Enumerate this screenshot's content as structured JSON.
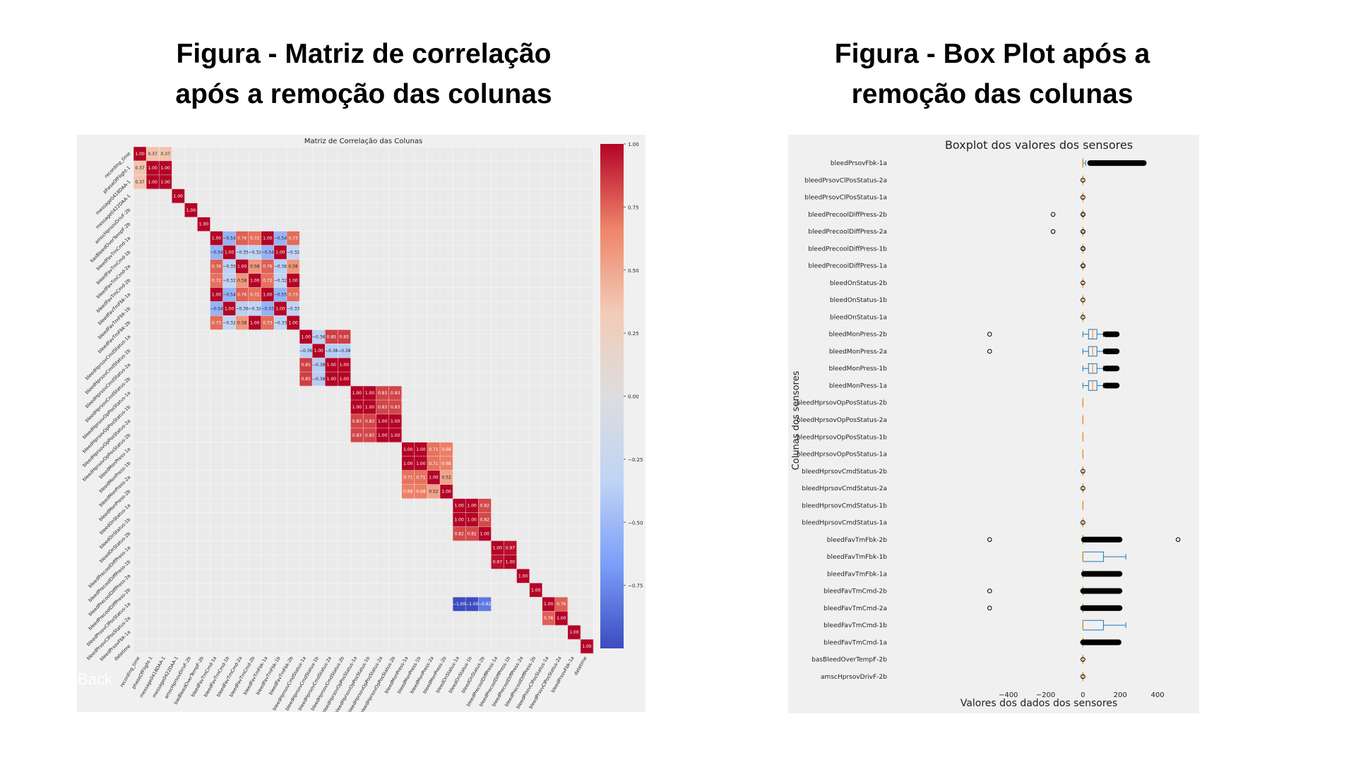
{
  "slide": {
    "left_title": "Figura - Matriz de correlação\napós a remoção das colunas",
    "right_title": "Figura - Box Plot após a\nremoção das colunas",
    "back_label": "Back"
  },
  "colors": {
    "panel_bg": "#f0f0f0",
    "cmap": [
      "#3b4cc0",
      "#7b9ff9",
      "#c0d4f5",
      "#dddddd",
      "#f2cbb7",
      "#ee8468",
      "#b40426"
    ],
    "box_color": "#1f77b4",
    "median_color": "#ff7f0e"
  },
  "chart_data": [
    {
      "type": "heatmap",
      "title": "Matriz de Correlação das Colunas",
      "labels": [
        "recording_time",
        "phaseOfFlight-1",
        "message0418DAA-1",
        "message0422DAA-1",
        "amscHprsovDrivF-2b",
        "basBleedOverTempF-2b",
        "bleedFavTmCmd-1a",
        "bleedFavTmCmd-1b",
        "bleedFavTmCmd-2a",
        "bleedFavTmCmd-2b",
        "bleedFavTmFbk-1a",
        "bleedFavTmFbk-1b",
        "bleedFavTmFbk-2b",
        "bleedHprsovCmdStatus-1a",
        "bleedHprsovCmdStatus-1b",
        "bleedHprsovCmdStatus-2a",
        "bleedHprsovCmdStatus-2b",
        "bleedHprsovOpPosStatus-1a",
        "bleedHprsovOpPosStatus-1b",
        "bleedHprsovOpPosStatus-2a",
        "bleedHprsovOpPosStatus-2b",
        "bleedMonPress-1a",
        "bleedMonPress-1b",
        "bleedMonPress-2a",
        "bleedMonPress-2b",
        "bleedOnStatus-1a",
        "bleedOnStatus-1b",
        "bleedOnStatus-2b",
        "bleedPrecoolDiffPress-1a",
        "bleedPrecoolDiffPress-1b",
        "bleedPrecoolDiffPress-2a",
        "bleedPrecoolDiffPress-2b",
        "bleedPrsovClPosStatus-1a",
        "bleedPrsovClPosStatus-2a",
        "bleedPrsovFbk-1a",
        "datetime"
      ],
      "colorbar_ticks": [
        1.0,
        0.75,
        0.5,
        0.25,
        0.0,
        -0.25,
        -0.5,
        -0.75
      ],
      "colorbar_tick_labels": [
        "1.00",
        "0.75",
        "0.50",
        "0.25",
        "0.00",
        "−0.25",
        "−0.50",
        "−0.75"
      ],
      "vmin": -1.0,
      "vmax": 1.0,
      "cells": [
        [
          0,
          0,
          1.0
        ],
        [
          0,
          1,
          0.37
        ],
        [
          0,
          2,
          0.37
        ],
        [
          1,
          0,
          0.37
        ],
        [
          1,
          1,
          1.0
        ],
        [
          1,
          2,
          1.0
        ],
        [
          2,
          0,
          0.37
        ],
        [
          2,
          1,
          1.0
        ],
        [
          2,
          2,
          1.0
        ],
        [
          3,
          3,
          1.0
        ],
        [
          4,
          4,
          1.0
        ],
        [
          5,
          5,
          1.0
        ],
        [
          6,
          6,
          1.0
        ],
        [
          6,
          7,
          -0.54
        ],
        [
          6,
          8,
          0.76
        ],
        [
          6,
          9,
          0.72
        ],
        [
          6,
          10,
          1.0
        ],
        [
          6,
          11,
          -0.54
        ],
        [
          6,
          12,
          0.73
        ],
        [
          7,
          6,
          -0.54
        ],
        [
          7,
          7,
          1.0
        ],
        [
          7,
          8,
          -0.35
        ],
        [
          7,
          9,
          -0.32
        ],
        [
          7,
          10,
          -0.54
        ],
        [
          7,
          11,
          1.0
        ],
        [
          7,
          12,
          -0.32
        ],
        [
          8,
          6,
          0.76
        ],
        [
          8,
          7,
          -0.35
        ],
        [
          8,
          8,
          1.0
        ],
        [
          8,
          9,
          0.58
        ],
        [
          8,
          10,
          0.76
        ],
        [
          8,
          11,
          -0.36
        ],
        [
          8,
          12,
          0.58
        ],
        [
          9,
          6,
          0.72
        ],
        [
          9,
          7,
          -0.32
        ],
        [
          9,
          8,
          0.58
        ],
        [
          9,
          9,
          1.0
        ],
        [
          9,
          10,
          0.72
        ],
        [
          9,
          11,
          -0.32
        ],
        [
          9,
          12,
          1.0
        ],
        [
          10,
          6,
          1.0
        ],
        [
          10,
          7,
          -0.54
        ],
        [
          10,
          8,
          0.76
        ],
        [
          10,
          9,
          0.72
        ],
        [
          10,
          10,
          1.0
        ],
        [
          10,
          11,
          -0.55
        ],
        [
          10,
          12,
          0.73
        ],
        [
          11,
          6,
          -0.54
        ],
        [
          11,
          7,
          1.0
        ],
        [
          11,
          8,
          -0.36
        ],
        [
          11,
          9,
          -0.32
        ],
        [
          11,
          10,
          -0.55
        ],
        [
          11,
          11,
          1.0
        ],
        [
          11,
          12,
          -0.33
        ],
        [
          12,
          6,
          0.73
        ],
        [
          12,
          7,
          -0.32
        ],
        [
          12,
          8,
          0.58
        ],
        [
          12,
          9,
          1.0
        ],
        [
          12,
          10,
          0.73
        ],
        [
          12,
          11,
          -0.33
        ],
        [
          12,
          12,
          1.0
        ],
        [
          13,
          13,
          1.0
        ],
        [
          13,
          14,
          -0.36
        ],
        [
          13,
          15,
          0.85
        ],
        [
          13,
          16,
          0.85
        ],
        [
          14,
          13,
          -0.36
        ],
        [
          14,
          14,
          1.0
        ],
        [
          14,
          15,
          -0.38
        ],
        [
          14,
          16,
          -0.38
        ],
        [
          15,
          13,
          0.85
        ],
        [
          15,
          14,
          -0.38
        ],
        [
          15,
          15,
          1.0
        ],
        [
          15,
          16,
          1.0
        ],
        [
          16,
          13,
          0.85
        ],
        [
          16,
          14,
          -0.38
        ],
        [
          16,
          15,
          1.0
        ],
        [
          16,
          16,
          1.0
        ],
        [
          17,
          17,
          1.0
        ],
        [
          17,
          18,
          1.0
        ],
        [
          17,
          19,
          0.83
        ],
        [
          17,
          20,
          0.83
        ],
        [
          18,
          17,
          1.0
        ],
        [
          18,
          18,
          1.0
        ],
        [
          18,
          19,
          0.83
        ],
        [
          18,
          20,
          0.83
        ],
        [
          19,
          17,
          0.83
        ],
        [
          19,
          18,
          0.83
        ],
        [
          19,
          19,
          1.0
        ],
        [
          19,
          20,
          1.0
        ],
        [
          20,
          17,
          0.83
        ],
        [
          20,
          18,
          0.83
        ],
        [
          20,
          19,
          1.0
        ],
        [
          20,
          20,
          1.0
        ],
        [
          21,
          21,
          1.0
        ],
        [
          21,
          22,
          1.0
        ],
        [
          21,
          23,
          0.71
        ],
        [
          21,
          24,
          0.68
        ],
        [
          22,
          21,
          1.0
        ],
        [
          22,
          22,
          1.0
        ],
        [
          22,
          23,
          0.71
        ],
        [
          22,
          24,
          0.68
        ],
        [
          23,
          21,
          0.71
        ],
        [
          23,
          22,
          0.71
        ],
        [
          23,
          23,
          1.0
        ],
        [
          23,
          24,
          0.52
        ],
        [
          24,
          21,
          0.68
        ],
        [
          24,
          22,
          0.68
        ],
        [
          24,
          23,
          0.52
        ],
        [
          24,
          24,
          1.0
        ],
        [
          25,
          25,
          1.0
        ],
        [
          25,
          26,
          1.0
        ],
        [
          25,
          27,
          0.82
        ],
        [
          26,
          25,
          1.0
        ],
        [
          26,
          26,
          1.0
        ],
        [
          26,
          27,
          0.82
        ],
        [
          27,
          25,
          0.82
        ],
        [
          27,
          26,
          0.82
        ],
        [
          27,
          27,
          1.0
        ],
        [
          28,
          28,
          1.0
        ],
        [
          28,
          29,
          0.97
        ],
        [
          29,
          28,
          0.97
        ],
        [
          29,
          29,
          1.0
        ],
        [
          30,
          30,
          1.0
        ],
        [
          31,
          31,
          1.0
        ],
        [
          32,
          25,
          -1.0
        ],
        [
          32,
          26,
          -1.0
        ],
        [
          32,
          27,
          -0.82
        ],
        [
          32,
          32,
          1.0
        ],
        [
          32,
          33,
          0.76
        ],
        [
          33,
          32,
          0.76
        ],
        [
          33,
          33,
          1.0
        ],
        [
          34,
          34,
          1.0
        ],
        [
          35,
          35,
          1.0
        ]
      ]
    },
    {
      "type": "box",
      "title": "Boxplot dos valores dos sensores",
      "xlabel": "Valores dos dados dos sensores",
      "ylabel": "Colunas dos sensores",
      "xlim": [
        -520,
        540
      ],
      "xticks": [
        -400,
        -200,
        0,
        200,
        400
      ],
      "xtick_labels": [
        "−400",
        "−200",
        "0",
        "200",
        "400"
      ],
      "categories": [
        "bleedPrsovFbk-1a",
        "bleedPrsovClPosStatus-2a",
        "bleedPrsovClPosStatus-1a",
        "bleedPrecoolDiffPress-2b",
        "bleedPrecoolDiffPress-2a",
        "bleedPrecoolDiffPress-1b",
        "bleedPrecoolDiffPress-1a",
        "bleedOnStatus-2b",
        "bleedOnStatus-1b",
        "bleedOnStatus-1a",
        "bleedMonPress-2b",
        "bleedMonPress-2a",
        "bleedMonPress-1b",
        "bleedMonPress-1a",
        "bleedHprsovOpPosStatus-2b",
        "bleedHprsovOpPosStatus-2a",
        "bleedHprsovOpPosStatus-1b",
        "bleedHprsovOpPosStatus-1a",
        "bleedHprsovCmdStatus-2b",
        "bleedHprsovCmdStatus-2a",
        "bleedHprsovCmdStatus-1b",
        "bleedHprsovCmdStatus-1a",
        "bleedFavTmFbk-2b",
        "bleedFavTmFbk-1b",
        "bleedFavTmFbk-1a",
        "bleedFavTmCmd-2b",
        "bleedFavTmCmd-2a",
        "bleedFavTmCmd-1b",
        "bleedFavTmCmd-1a",
        "basBleedOverTempF-2b",
        "amscHprsovDrivF-2b"
      ],
      "boxes": [
        {
          "whislo": 0,
          "q1": 0,
          "med": 0,
          "q3": 0,
          "whishi": 15,
          "outlier_band": [
            35,
            330
          ]
        },
        {
          "whislo": 0,
          "q1": 0,
          "med": 0,
          "q3": 0,
          "whishi": 0,
          "outliers": [
            0
          ]
        },
        {
          "whislo": 0,
          "q1": 0,
          "med": 0,
          "q3": 0,
          "whishi": 0,
          "outliers": [
            0
          ]
        },
        {
          "whislo": 0,
          "q1": 0,
          "med": 0,
          "q3": 0,
          "whishi": 0,
          "outliers": [
            -160,
            0,
            1
          ]
        },
        {
          "whislo": 0,
          "q1": 0,
          "med": 0,
          "q3": 0,
          "whishi": 0,
          "outliers": [
            -160,
            0,
            1
          ]
        },
        {
          "whislo": 0,
          "q1": 0,
          "med": 0,
          "q3": 0,
          "whishi": 0,
          "outliers": [
            0,
            1
          ]
        },
        {
          "whislo": 0,
          "q1": 0,
          "med": 0,
          "q3": 0,
          "whishi": 0,
          "outliers": [
            0,
            1
          ]
        },
        {
          "whislo": 0,
          "q1": 0,
          "med": 0,
          "q3": 0,
          "whishi": 0,
          "outliers": [
            0
          ]
        },
        {
          "whislo": 0,
          "q1": 0,
          "med": 0,
          "q3": 0,
          "whishi": 0,
          "outliers": [
            0
          ]
        },
        {
          "whislo": 0,
          "q1": 0,
          "med": 0,
          "q3": 0,
          "whishi": 0,
          "outliers": [
            0
          ]
        },
        {
          "whislo": 0,
          "q1": 30,
          "med": 52,
          "q3": 75,
          "whishi": 110,
          "outlier_band": [
            118,
            185
          ],
          "outliers": [
            -500
          ]
        },
        {
          "whislo": 0,
          "q1": 30,
          "med": 52,
          "q3": 75,
          "whishi": 110,
          "outlier_band": [
            118,
            185
          ],
          "outliers": [
            -500
          ]
        },
        {
          "whislo": 0,
          "q1": 30,
          "med": 52,
          "q3": 75,
          "whishi": 110,
          "outlier_band": [
            118,
            185
          ]
        },
        {
          "whislo": 0,
          "q1": 30,
          "med": 52,
          "q3": 75,
          "whishi": 110,
          "outlier_band": [
            118,
            185
          ]
        },
        {
          "whislo": 0,
          "q1": 0,
          "med": 0,
          "q3": 0,
          "whishi": 0
        },
        {
          "whislo": 0,
          "q1": 0,
          "med": 0,
          "q3": 0,
          "whishi": 0
        },
        {
          "whislo": 0,
          "q1": 0,
          "med": 0,
          "q3": 0,
          "whishi": 0
        },
        {
          "whislo": 0,
          "q1": 0,
          "med": 0,
          "q3": 0,
          "whishi": 0
        },
        {
          "whislo": 0,
          "q1": 0,
          "med": 0,
          "q3": 0,
          "whishi": 0,
          "outliers": [
            0
          ]
        },
        {
          "whislo": 0,
          "q1": 0,
          "med": 0,
          "q3": 0,
          "whishi": 0,
          "outliers": [
            0
          ]
        },
        {
          "whislo": 0,
          "q1": 0,
          "med": 0,
          "q3": 0,
          "whishi": 0
        },
        {
          "whislo": 0,
          "q1": 0,
          "med": 0,
          "q3": 0,
          "whishi": 0,
          "outliers": [
            0
          ]
        },
        {
          "whislo": 0,
          "q1": 0,
          "med": 0,
          "q3": 0,
          "whishi": 0,
          "outlier_band": [
            2,
            200
          ],
          "outliers": [
            -500,
            510
          ]
        },
        {
          "whislo": 0,
          "q1": 0,
          "med": 0,
          "q3": 110,
          "whishi": 230
        },
        {
          "whislo": 0,
          "q1": 0,
          "med": 0,
          "q3": 0,
          "whishi": 0,
          "outlier_band": [
            2,
            200
          ]
        },
        {
          "whislo": 0,
          "q1": 0,
          "med": 0,
          "q3": 0,
          "whishi": 0,
          "outlier_band": [
            -3,
            200
          ],
          "outliers": [
            -500
          ]
        },
        {
          "whislo": 0,
          "q1": 0,
          "med": 0,
          "q3": 0,
          "whishi": 0,
          "outlier_band": [
            -3,
            200
          ],
          "outliers": [
            -500
          ]
        },
        {
          "whislo": 0,
          "q1": 0,
          "med": 0,
          "q3": 110,
          "whishi": 230
        },
        {
          "whislo": 0,
          "q1": 0,
          "med": 0,
          "q3": 0,
          "whishi": 0,
          "outlier_band": [
            -3,
            195
          ]
        },
        {
          "whislo": 0,
          "q1": 0,
          "med": 0,
          "q3": 0,
          "whishi": 0,
          "outliers": [
            0
          ]
        },
        {
          "whislo": 0,
          "q1": 0,
          "med": 0,
          "q3": 0,
          "whishi": 0,
          "outliers": [
            0
          ]
        }
      ]
    }
  ]
}
